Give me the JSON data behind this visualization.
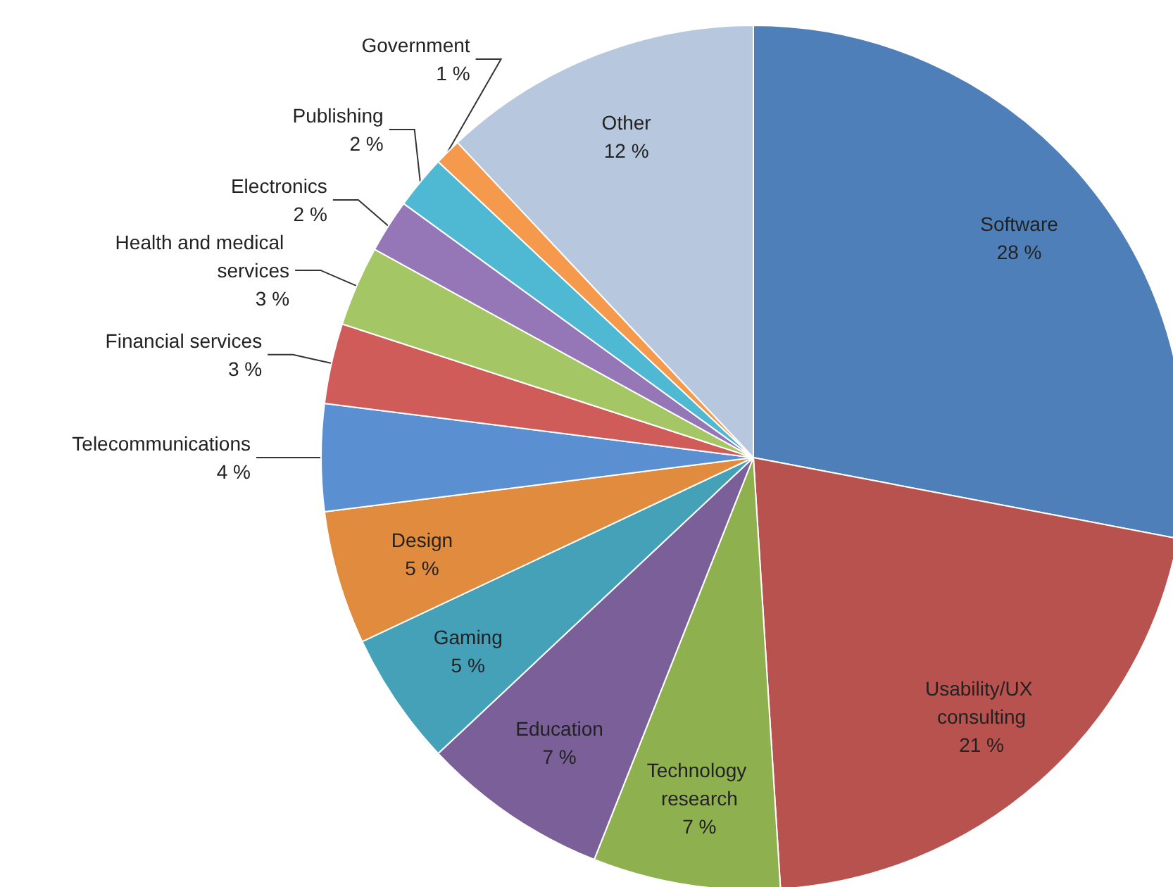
{
  "chart_data": {
    "type": "pie",
    "categories": [
      "Software",
      "Usability/UX consulting",
      "Technology research",
      "Education",
      "Gaming",
      "Design",
      "Telecommunications",
      "Financial services",
      "Health and medical services",
      "Electronics",
      "Publishing",
      "Government",
      "Other"
    ],
    "values": [
      28,
      21,
      7,
      7,
      5,
      5,
      4,
      3,
      3,
      2,
      2,
      1,
      12
    ],
    "value_labels": [
      "28 %",
      "21 %",
      "7 %",
      "7 %",
      "5 %",
      "5 %",
      "4 %",
      "3 %",
      "3 %",
      "2 %",
      "2 %",
      "1 %",
      "12 %"
    ],
    "colors": [
      "#4f7fb8",
      "#b8524f",
      "#8fb04f",
      "#7a5f99",
      "#45a1b8",
      "#e08b3d",
      "#5a8fd2",
      "#d05c5a",
      "#a4c665",
      "#9577b8",
      "#4fb8d2",
      "#f59a4c",
      "#b7c8de"
    ],
    "legend": false
  }
}
